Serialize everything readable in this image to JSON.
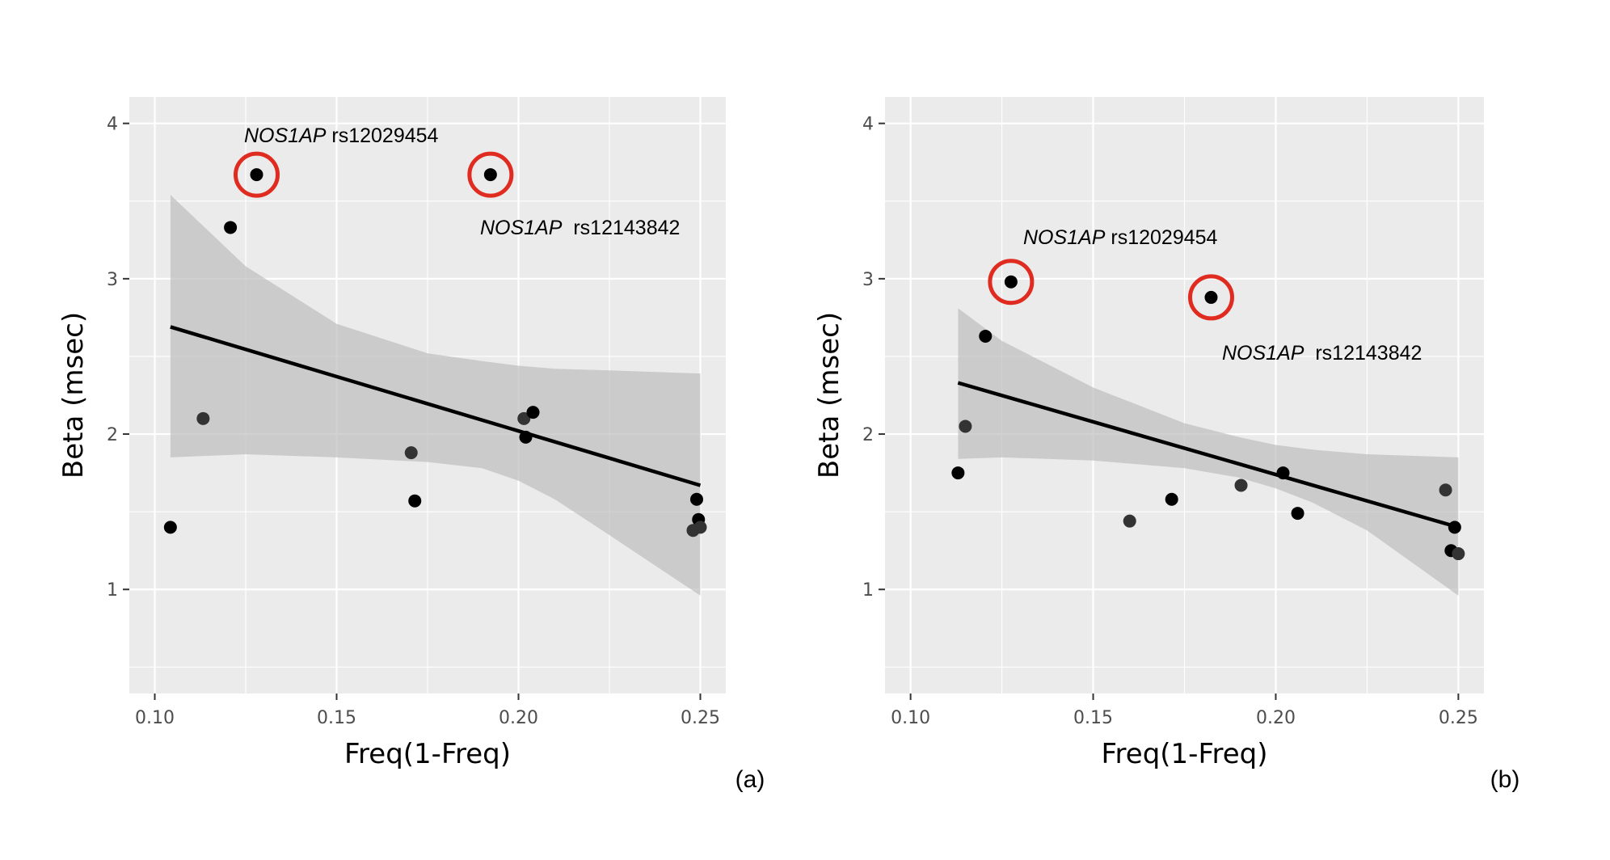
{
  "chart_data": [
    {
      "type": "scatter",
      "panel_label": "(a)",
      "xlabel": "Freq(1-Freq)",
      "ylabel": "Beta (msec)",
      "xlim": [
        0.093,
        0.257
      ],
      "ylim": [
        0.33,
        4.17
      ],
      "x_ticks": [
        0.1,
        0.15,
        0.2,
        0.25
      ],
      "x_tick_labels": [
        "0.10",
        "0.15",
        "0.20",
        "0.25"
      ],
      "y_ticks": [
        1,
        2,
        3,
        4
      ],
      "y_tick_labels": [
        "1",
        "2",
        "3",
        "4"
      ],
      "grid": true,
      "points": [
        {
          "x": 0.1043,
          "y": 1.4
        },
        {
          "x": 0.1133,
          "y": 2.1
        },
        {
          "x": 0.1208,
          "y": 3.33
        },
        {
          "x": 0.128,
          "y": 3.67
        },
        {
          "x": 0.1705,
          "y": 1.88
        },
        {
          "x": 0.1715,
          "y": 1.57
        },
        {
          "x": 0.1923,
          "y": 3.67
        },
        {
          "x": 0.2015,
          "y": 2.1
        },
        {
          "x": 0.202,
          "y": 1.98
        },
        {
          "x": 0.204,
          "y": 2.14
        },
        {
          "x": 0.248,
          "y": 1.38
        },
        {
          "x": 0.249,
          "y": 1.58
        },
        {
          "x": 0.2495,
          "y": 1.45
        },
        {
          "x": 0.25,
          "y": 1.4
        }
      ],
      "fit_line": [
        {
          "x": 0.1043,
          "y": 2.69
        },
        {
          "x": 0.25,
          "y": 1.67
        }
      ],
      "confidence_band": {
        "x": [
          0.1043,
          0.125,
          0.15,
          0.175,
          0.19,
          0.2,
          0.21,
          0.225,
          0.25
        ],
        "upper": [
          3.54,
          3.08,
          2.71,
          2.52,
          2.47,
          2.44,
          2.42,
          2.41,
          2.39
        ],
        "lower": [
          1.85,
          1.87,
          1.85,
          1.82,
          1.78,
          1.7,
          1.58,
          1.35,
          0.96
        ]
      },
      "highlighted": [
        {
          "x": 0.128,
          "y": 3.67,
          "gene": "NOS1AP",
          "snp": "rs12029454"
        },
        {
          "x": 0.1923,
          "y": 3.67,
          "gene": "NOS1AP",
          "snp": "rs12143842"
        }
      ],
      "annotations": [
        {
          "gene": "NOS1AP",
          "snp": "rs12029454"
        },
        {
          "gene": "NOS1AP",
          "snp": "rs12143842"
        }
      ],
      "colors": {
        "points": "#000000",
        "highlight": "#e02b20",
        "band": "#bdbdbd",
        "panel": "#ebebeb"
      }
    },
    {
      "type": "scatter",
      "panel_label": "(b)",
      "xlabel": "Freq(1-Freq)",
      "ylabel": "Beta (msec)",
      "xlim": [
        0.093,
        0.257
      ],
      "ylim": [
        0.33,
        4.17
      ],
      "x_ticks": [
        0.1,
        0.15,
        0.2,
        0.25
      ],
      "x_tick_labels": [
        "0.10",
        "0.15",
        "0.20",
        "0.25"
      ],
      "y_ticks": [
        1,
        2,
        3,
        4
      ],
      "y_tick_labels": [
        "1",
        "2",
        "3",
        "4"
      ],
      "grid": true,
      "points": [
        {
          "x": 0.113,
          "y": 1.75
        },
        {
          "x": 0.115,
          "y": 2.05
        },
        {
          "x": 0.1205,
          "y": 2.63
        },
        {
          "x": 0.1275,
          "y": 2.98
        },
        {
          "x": 0.16,
          "y": 1.44
        },
        {
          "x": 0.1715,
          "y": 1.58
        },
        {
          "x": 0.1823,
          "y": 2.88
        },
        {
          "x": 0.1905,
          "y": 1.67
        },
        {
          "x": 0.202,
          "y": 1.75
        },
        {
          "x": 0.206,
          "y": 1.49
        },
        {
          "x": 0.2465,
          "y": 1.64
        },
        {
          "x": 0.248,
          "y": 1.25
        },
        {
          "x": 0.249,
          "y": 1.4
        },
        {
          "x": 0.25,
          "y": 1.23
        }
      ],
      "fit_line": [
        {
          "x": 0.113,
          "y": 2.33
        },
        {
          "x": 0.25,
          "y": 1.4
        }
      ],
      "confidence_band": {
        "x": [
          0.113,
          0.125,
          0.15,
          0.175,
          0.19,
          0.2,
          0.21,
          0.225,
          0.25
        ],
        "upper": [
          2.81,
          2.6,
          2.3,
          2.07,
          1.98,
          1.93,
          1.9,
          1.87,
          1.85
        ],
        "lower": [
          1.84,
          1.85,
          1.83,
          1.78,
          1.72,
          1.65,
          1.56,
          1.38,
          0.96
        ]
      },
      "highlighted": [
        {
          "x": 0.1275,
          "y": 2.98,
          "gene": "NOS1AP",
          "snp": "rs12029454"
        },
        {
          "x": 0.1823,
          "y": 2.88,
          "gene": "NOS1AP",
          "snp": "rs12143842"
        }
      ],
      "annotations": [
        {
          "gene": "NOS1AP",
          "snp": "rs12029454"
        },
        {
          "gene": "NOS1AP",
          "snp": "rs12143842"
        }
      ],
      "colors": {
        "points": "#000000",
        "highlight": "#e02b20",
        "band": "#bdbdbd",
        "panel": "#ebebeb"
      }
    }
  ]
}
